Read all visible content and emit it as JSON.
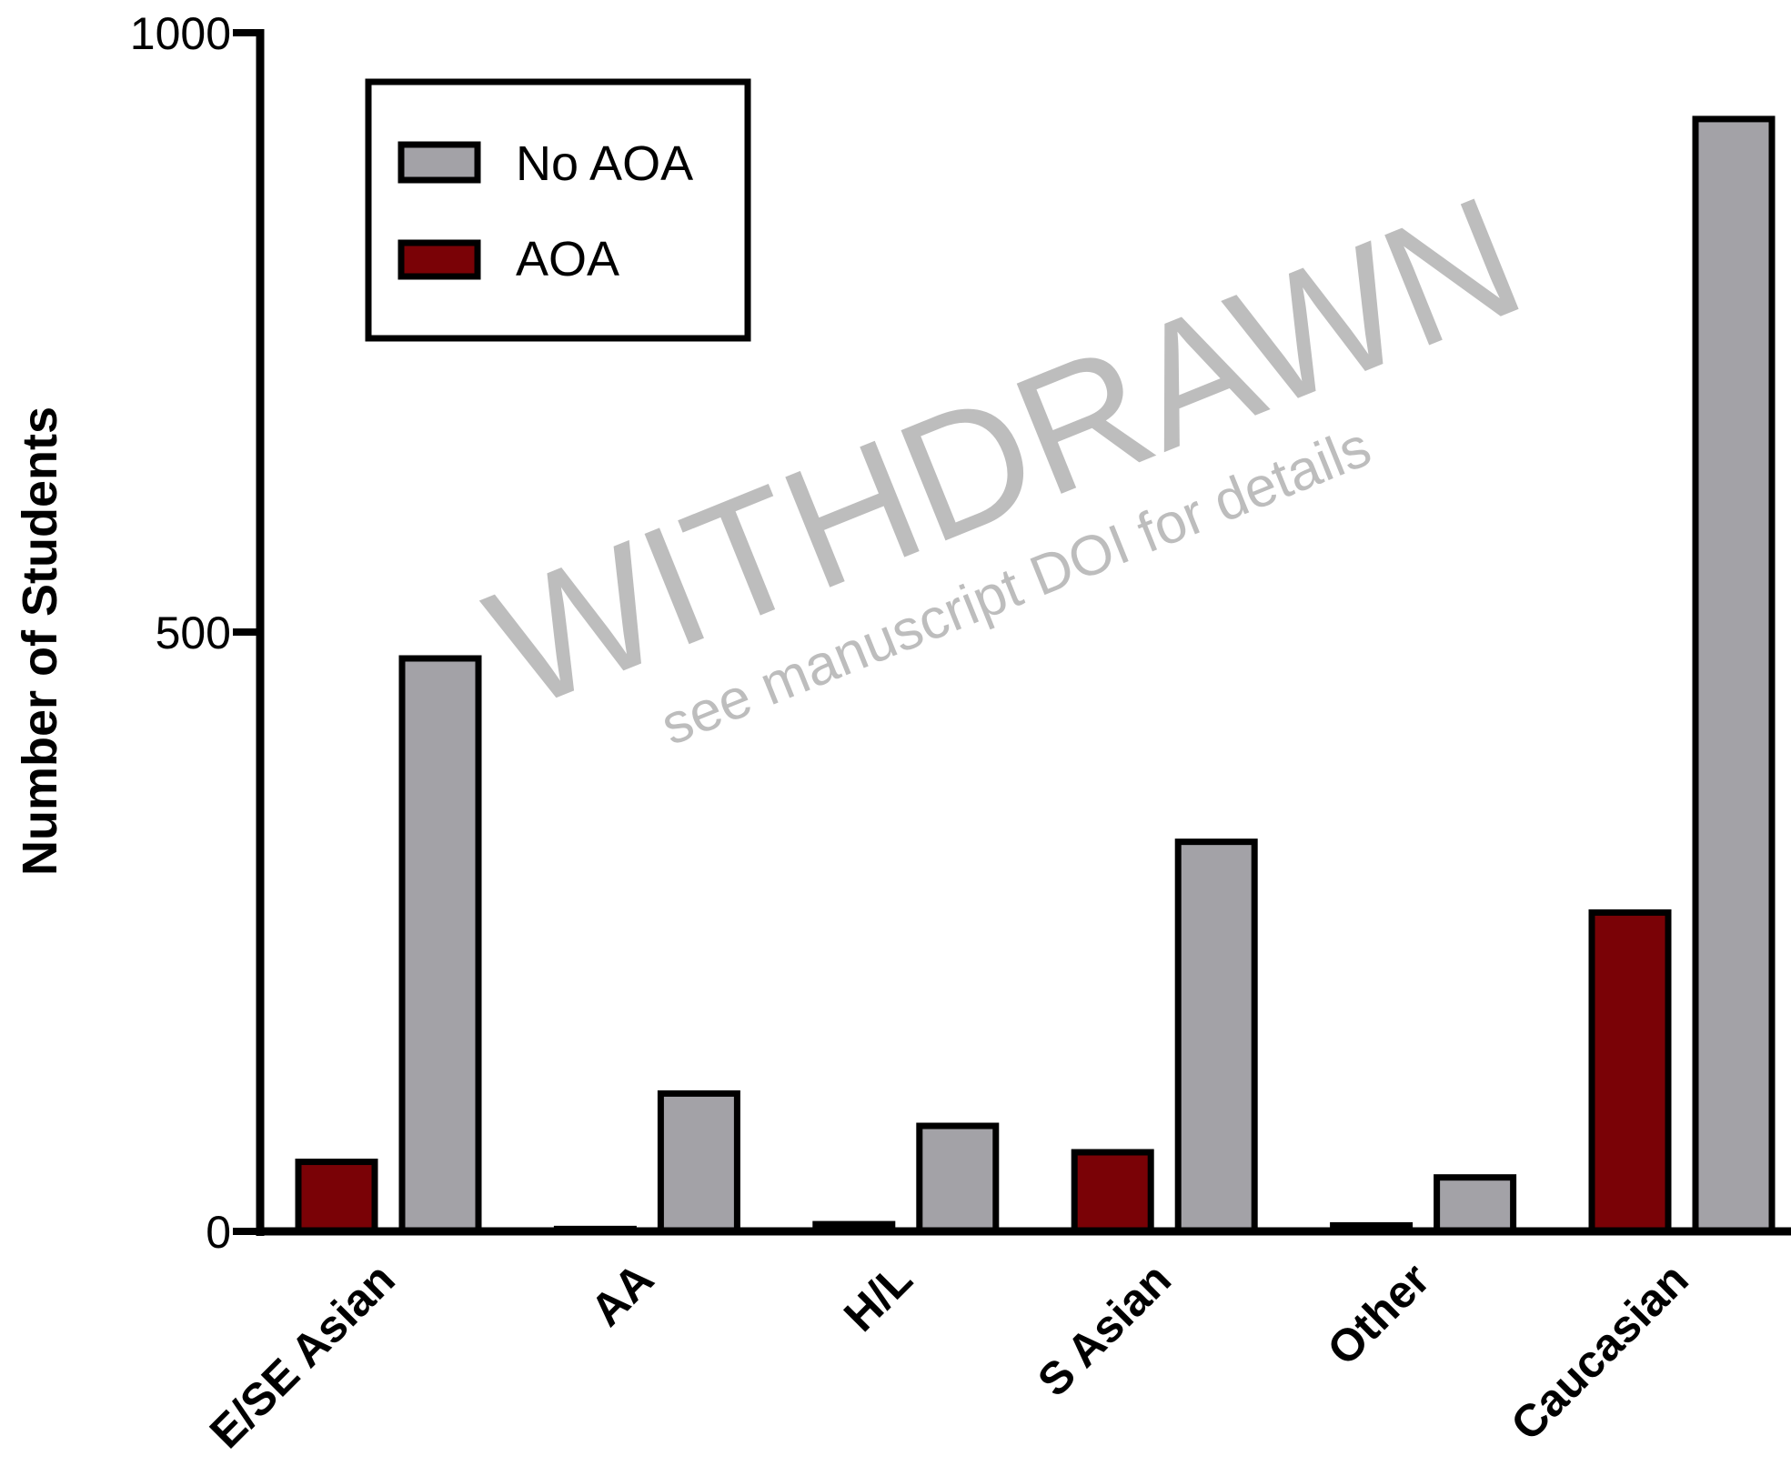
{
  "chart_data": {
    "type": "bar",
    "categories": [
      "E/SE Asian",
      "AA",
      "H/L",
      "S Asian",
      "Other",
      "Caucasian"
    ],
    "series": [
      {
        "name": "AOA",
        "color": "#7a0206",
        "values": [
          58,
          2,
          6,
          66,
          5,
          266
        ]
      },
      {
        "name": "No AOA",
        "color": "#a3a2a7",
        "values": [
          478,
          115,
          88,
          325,
          45,
          928
        ]
      }
    ],
    "ylabel": "Number of Students",
    "ylim": [
      0,
      1000
    ],
    "yticks": [
      0,
      500,
      1000
    ],
    "legend": {
      "position": "top-left",
      "order": [
        "No AOA",
        "AOA"
      ]
    },
    "grid": false
  },
  "watermark": {
    "main": "WITHDRAWN",
    "sub": "see manuscript DOI for details"
  }
}
